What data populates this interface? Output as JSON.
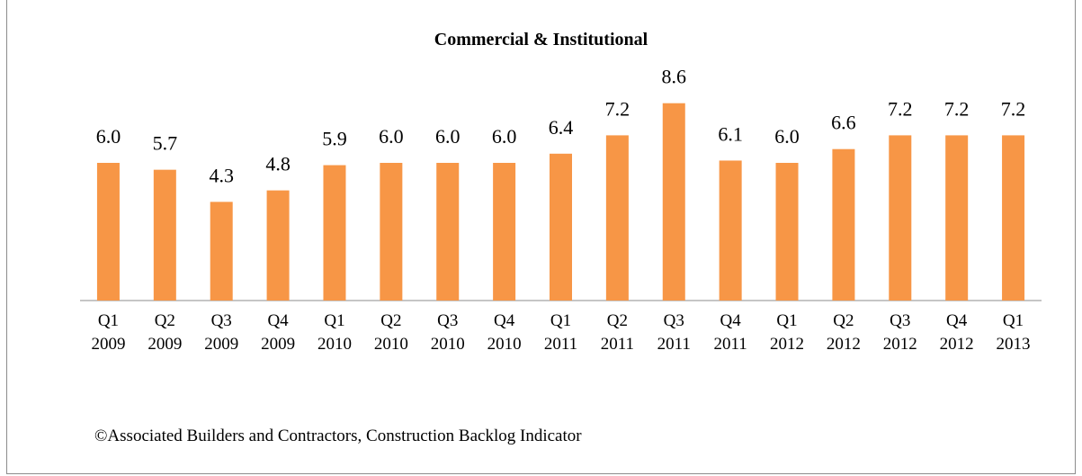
{
  "chart_data": {
    "type": "bar",
    "title": "Commercial & Institutional",
    "categories": [
      "Q1 2009",
      "Q2 2009",
      "Q3 2009",
      "Q4 2009",
      "Q1 2010",
      "Q2 2010",
      "Q3 2010",
      "Q4 2010",
      "Q1 2011",
      "Q2 2011",
      "Q3 2011",
      "Q4 2011",
      "Q1 2012",
      "Q2 2012",
      "Q3 2012",
      "Q4 2012",
      "Q1 2013"
    ],
    "values": [
      6.0,
      5.7,
      4.3,
      4.8,
      5.9,
      6.0,
      6.0,
      6.0,
      6.4,
      7.2,
      8.6,
      6.1,
      6.0,
      6.6,
      7.2,
      7.2,
      7.2
    ],
    "value_labels": [
      "6.0",
      "5.7",
      "4.3",
      "4.8",
      "5.9",
      "6.0",
      "6.0",
      "6.0",
      "6.4",
      "7.2",
      "8.6",
      "6.1",
      "6.0",
      "6.6",
      "7.2",
      "7.2",
      "7.2"
    ],
    "color": "#f79646",
    "ylim": [
      0,
      10
    ],
    "source": "©Associated Builders and Contractors, Construction Backlog Indicator"
  }
}
